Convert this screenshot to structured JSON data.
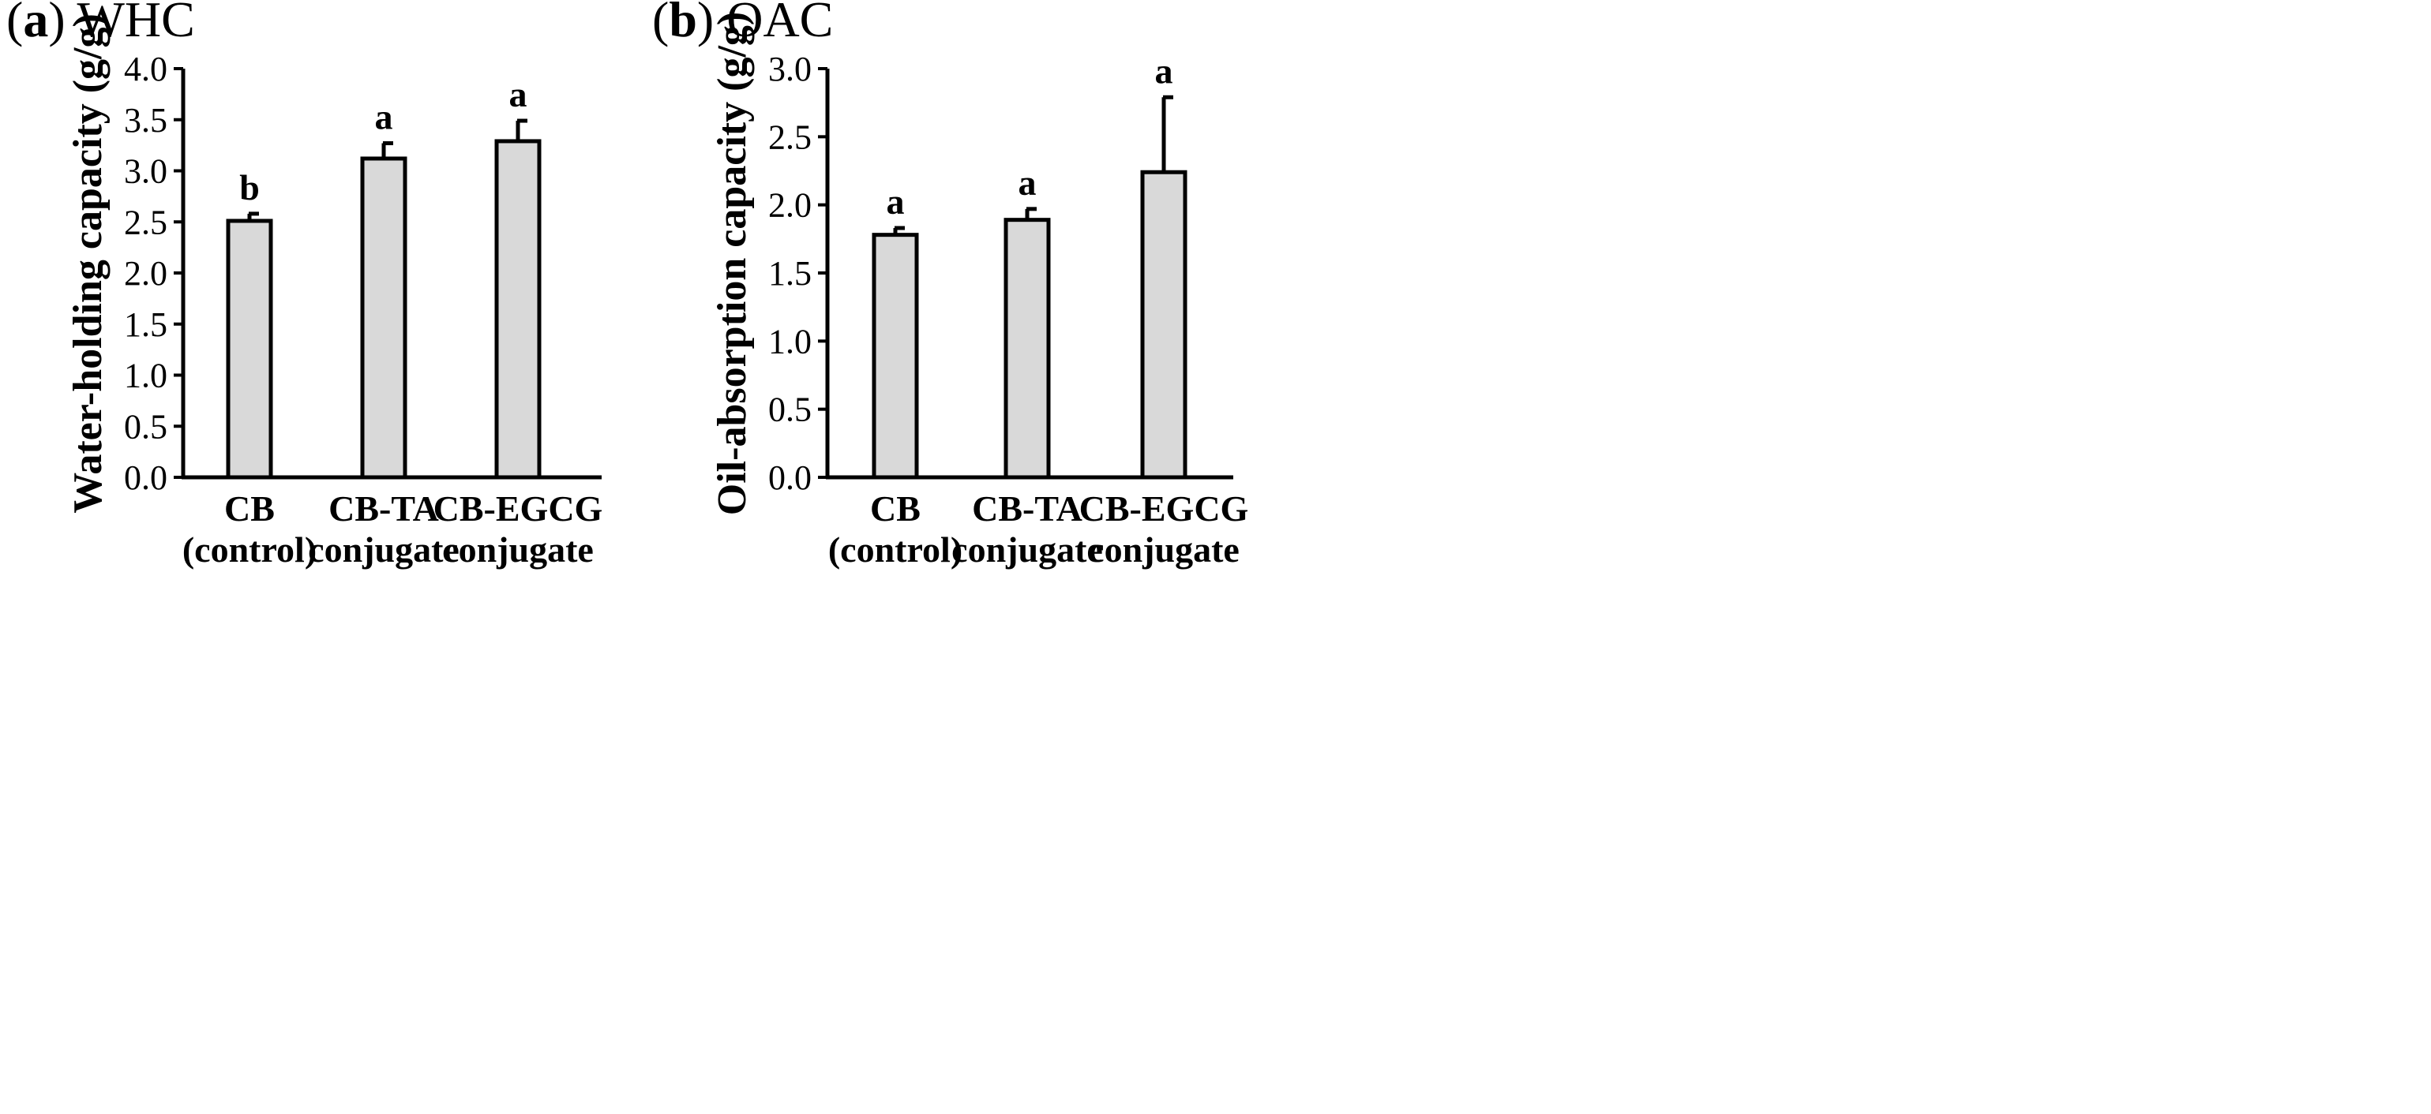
{
  "chart_data": [
    {
      "type": "bar",
      "panel_letter": "a",
      "panel_title": "WHC",
      "ylabel": "Water-holding  capacity (g/g)",
      "ylim": [
        0.0,
        4.0
      ],
      "yticks": [
        "0.0",
        "0.5",
        "1.0",
        "1.5",
        "2.0",
        "2.5",
        "3.0",
        "3.5",
        "4.0"
      ],
      "categories": [
        [
          "CB",
          "(control)"
        ],
        [
          "CB-TA",
          "conjugate"
        ],
        [
          "CB-EGCG",
          "conjugate"
        ]
      ],
      "values": [
        2.51,
        3.12,
        3.29
      ],
      "errors": [
        0.07,
        0.15,
        0.2
      ],
      "significance": [
        "b",
        "a",
        "a"
      ]
    },
    {
      "type": "bar",
      "panel_letter": "b",
      "panel_title": "OAC",
      "ylabel": "Oil-absorption  capacity (g/g)",
      "ylim": [
        0.0,
        3.0
      ],
      "yticks": [
        "0.0",
        "0.5",
        "1.0",
        "1.5",
        "2.0",
        "2.5",
        "3.0"
      ],
      "categories": [
        [
          "CB",
          "(control)"
        ],
        [
          "CB-TA",
          "conjugate"
        ],
        [
          "CB-EGCG",
          "conjugate"
        ]
      ],
      "values": [
        1.78,
        1.89,
        2.24
      ],
      "errors": [
        0.05,
        0.08,
        0.55
      ],
      "significance": [
        "a",
        "a",
        "a"
      ]
    }
  ]
}
